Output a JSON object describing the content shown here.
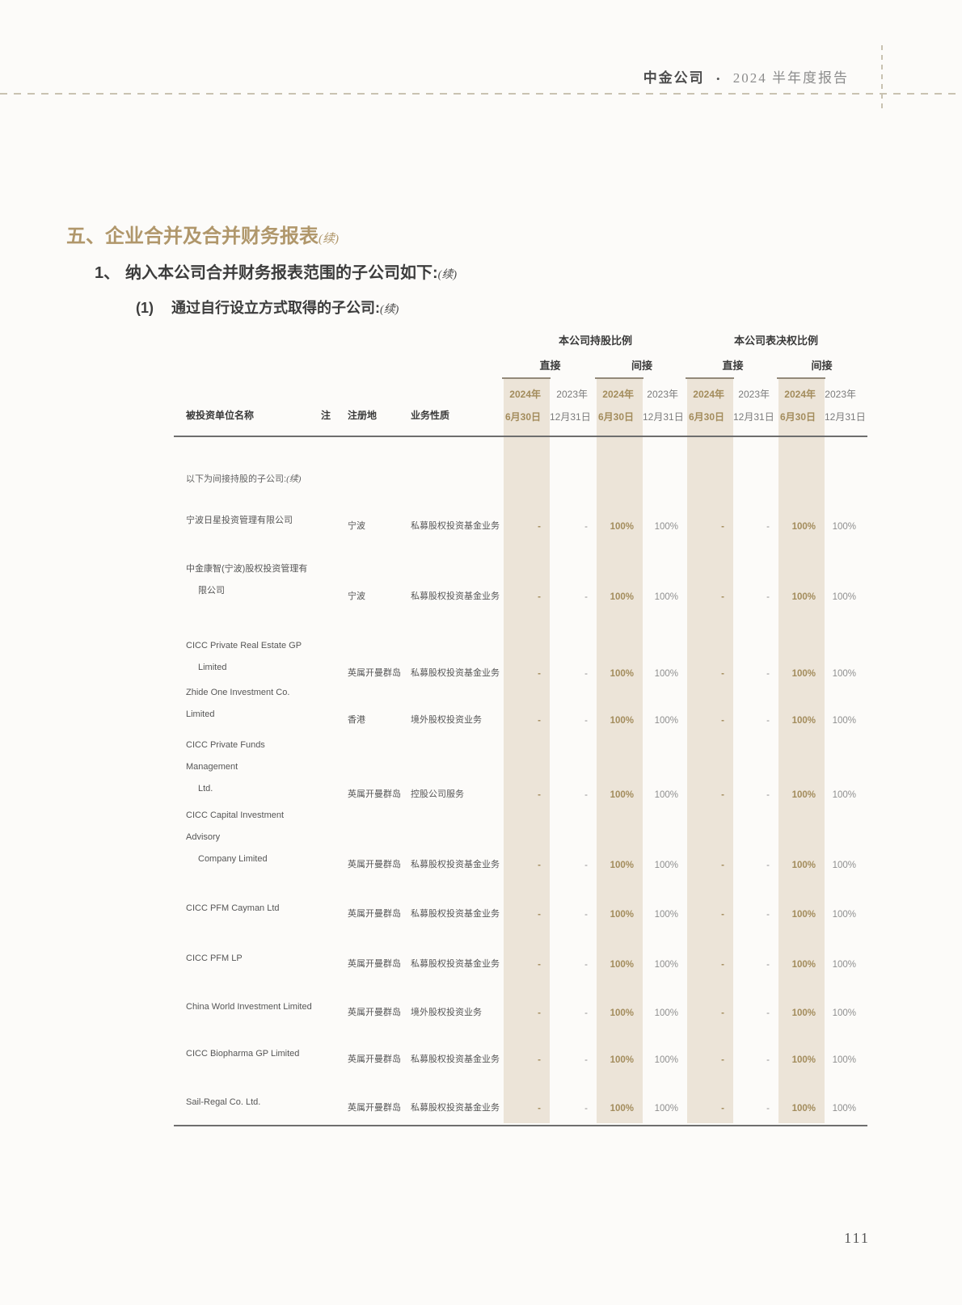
{
  "header": {
    "company": "中金公司",
    "separator": "•",
    "report": "2024 半年度报告"
  },
  "titles": {
    "section": {
      "text": "五、企业合并及合并财务报表",
      "cont": "(续)"
    },
    "item": {
      "num": "1、",
      "text": "纳入本公司合并财务报表范围的子公司如下:",
      "cont": "(续)"
    },
    "subitem": {
      "num": "(1)",
      "text": "通过自行设立方式取得的子公司:",
      "cont": "(续)"
    }
  },
  "table": {
    "group_headers": [
      "本公司持股比例",
      "本公司表决权比例"
    ],
    "subgroup_headers": [
      "直接",
      "间接",
      "直接",
      "间接"
    ],
    "col_headers": {
      "name": "被投资单位名称",
      "note": "注",
      "registration": "注册地",
      "business": "业务性质"
    },
    "period_headers": [
      {
        "year": "2024年",
        "date": "6月30日"
      },
      {
        "year": "2023年",
        "date": "12月31日"
      },
      {
        "year": "2024年",
        "date": "6月30日"
      },
      {
        "year": "2023年",
        "date": "12月31日"
      },
      {
        "year": "2024年",
        "date": "6月30日"
      },
      {
        "year": "2023年",
        "date": "12月31日"
      },
      {
        "year": "2024年",
        "date": "6月30日"
      },
      {
        "year": "2023年",
        "date": "12月31日"
      }
    ],
    "section_label": {
      "text": "以下为间接持股的子公司:",
      "cont": "(续)"
    },
    "rows": [
      {
        "name1": "宁波日星投资管理有限公司",
        "registration": "宁波",
        "business": "私募股权投资基金业务",
        "values": [
          "-",
          "-",
          "100%",
          "100%",
          "-",
          "-",
          "100%",
          "100%"
        ]
      },
      {
        "name1": "中金康智(宁波)股权投资管理有",
        "name2": "限公司",
        "registration": "宁波",
        "business": "私募股权投资基金业务",
        "values": [
          "-",
          "-",
          "100%",
          "100%",
          "-",
          "-",
          "100%",
          "100%"
        ]
      },
      {
        "name1": "CICC Private Real Estate GP",
        "name2": "Limited",
        "registration": "英属开曼群岛",
        "business": "私募股权投资基金业务",
        "values": [
          "-",
          "-",
          "100%",
          "100%",
          "-",
          "-",
          "100%",
          "100%"
        ]
      },
      {
        "name1": "Zhide One Investment Co. Limited",
        "registration": "香港",
        "business": "境外股权投资业务",
        "values": [
          "-",
          "-",
          "100%",
          "100%",
          "-",
          "-",
          "100%",
          "100%"
        ]
      },
      {
        "name1": "CICC Private Funds Management",
        "name2": "Ltd.",
        "registration": "英属开曼群岛",
        "business": "控股公司服务",
        "values": [
          "-",
          "-",
          "100%",
          "100%",
          "-",
          "-",
          "100%",
          "100%"
        ]
      },
      {
        "name1": "CICC Capital Investment Advisory",
        "name2": "Company Limited",
        "registration": "英属开曼群岛",
        "business": "私募股权投资基金业务",
        "values": [
          "-",
          "-",
          "100%",
          "100%",
          "-",
          "-",
          "100%",
          "100%"
        ]
      },
      {
        "name1": "CICC PFM Cayman Ltd",
        "registration": "英属开曼群岛",
        "business": "私募股权投资基金业务",
        "values": [
          "-",
          "-",
          "100%",
          "100%",
          "-",
          "-",
          "100%",
          "100%"
        ]
      },
      {
        "name1": "CICC PFM LP",
        "registration": "英属开曼群岛",
        "business": "私募股权投资基金业务",
        "values": [
          "-",
          "-",
          "100%",
          "100%",
          "-",
          "-",
          "100%",
          "100%"
        ]
      },
      {
        "name1": "China World Investment Limited",
        "registration": "英属开曼群岛",
        "business": "境外股权投资业务",
        "values": [
          "-",
          "-",
          "100%",
          "100%",
          "-",
          "-",
          "100%",
          "100%"
        ]
      },
      {
        "name1": "CICC Biopharma GP Limited",
        "registration": "英属开曼群岛",
        "business": "私募股权投资基金业务",
        "values": [
          "-",
          "-",
          "100%",
          "100%",
          "-",
          "-",
          "100%",
          "100%"
        ]
      },
      {
        "name1": "Sail-Regal Co. Ltd.",
        "registration": "英属开曼群岛",
        "business": "私募股权投资基金业务",
        "values": [
          "-",
          "-",
          "100%",
          "100%",
          "-",
          "-",
          "100%",
          "100%"
        ]
      }
    ]
  },
  "footer": {
    "page_number": "111"
  },
  "colors": {
    "accent_gold": "#b0976b",
    "value_gold": "#a38c5c",
    "highlight_bg": "#ece4d8",
    "dash_line": "#c9c2b1"
  }
}
